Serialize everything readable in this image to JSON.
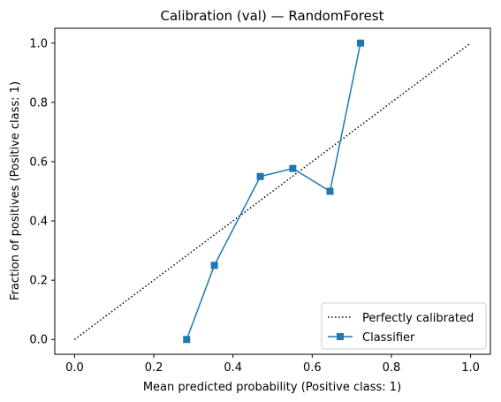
{
  "chart_data": {
    "type": "line",
    "title": "Calibration (val) — RandomForest",
    "xlabel": "Mean predicted probability (Positive class: 1)",
    "ylabel": "Fraction of positives (Positive class: 1)",
    "xlim": [
      -0.05,
      1.05
    ],
    "ylim": [
      -0.05,
      1.05
    ],
    "xticks": [
      "0.0",
      "0.2",
      "0.4",
      "0.6",
      "0.8",
      "1.0"
    ],
    "yticks": [
      "0.0",
      "0.2",
      "0.4",
      "0.6",
      "0.8",
      "1.0"
    ],
    "grid": false,
    "legend_placement": "lower-right",
    "series": [
      {
        "name": "Perfectly calibrated",
        "style": "dotted",
        "color": "#000000",
        "x": [
          0.0,
          1.0
        ],
        "y": [
          0.0,
          1.0
        ]
      },
      {
        "name": "Classifier",
        "style": "solid",
        "marker": "square",
        "color": "#1f77b4",
        "x": [
          0.283,
          0.353,
          0.469,
          0.551,
          0.645,
          0.722
        ],
        "y": [
          0.0,
          0.25,
          0.55,
          0.577,
          0.5,
          1.0
        ]
      }
    ]
  }
}
